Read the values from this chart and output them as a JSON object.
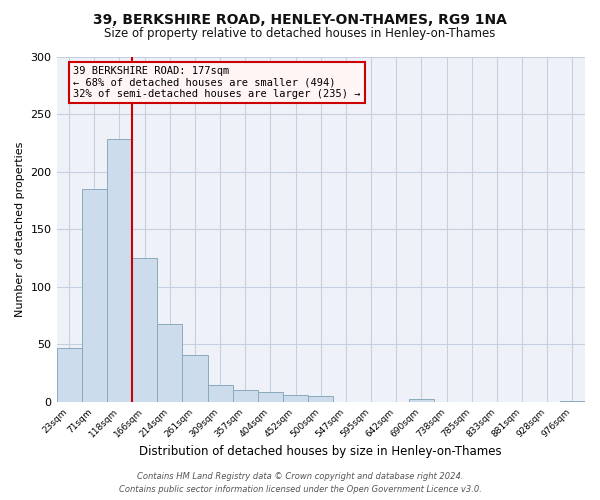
{
  "title": "39, BERKSHIRE ROAD, HENLEY-ON-THAMES, RG9 1NA",
  "subtitle": "Size of property relative to detached houses in Henley-on-Thames",
  "xlabel": "Distribution of detached houses by size in Henley-on-Thames",
  "ylabel": "Number of detached properties",
  "bin_labels": [
    "23sqm",
    "71sqm",
    "118sqm",
    "166sqm",
    "214sqm",
    "261sqm",
    "309sqm",
    "357sqm",
    "404sqm",
    "452sqm",
    "500sqm",
    "547sqm",
    "595sqm",
    "642sqm",
    "690sqm",
    "738sqm",
    "785sqm",
    "833sqm",
    "881sqm",
    "928sqm",
    "976sqm"
  ],
  "bar_heights": [
    47,
    185,
    228,
    125,
    68,
    41,
    15,
    10,
    9,
    6,
    5,
    0,
    0,
    0,
    3,
    0,
    0,
    0,
    0,
    0,
    1
  ],
  "bar_color": "#ccdcec",
  "bar_edge_color": "#8aaabb",
  "property_line_color": "#cc0000",
  "ylim": [
    0,
    300
  ],
  "yticks": [
    0,
    50,
    100,
    150,
    200,
    250,
    300
  ],
  "annotation_line1": "39 BERKSHIRE ROAD: 177sqm",
  "annotation_line2": "← 68% of detached houses are smaller (494)",
  "annotation_line3": "32% of semi-detached houses are larger (235) →",
  "annotation_box_facecolor": "#fff5f5",
  "annotation_box_edge": "#cc0000",
  "footer_line1": "Contains HM Land Registry data © Crown copyright and database right 2024.",
  "footer_line2": "Contains public sector information licensed under the Open Government Licence v3.0.",
  "background_color": "#eef2f8",
  "grid_color": "#c5cfe0",
  "title_fontsize": 10,
  "subtitle_fontsize": 8.5,
  "ylabel_fontsize": 8,
  "xlabel_fontsize": 8.5
}
